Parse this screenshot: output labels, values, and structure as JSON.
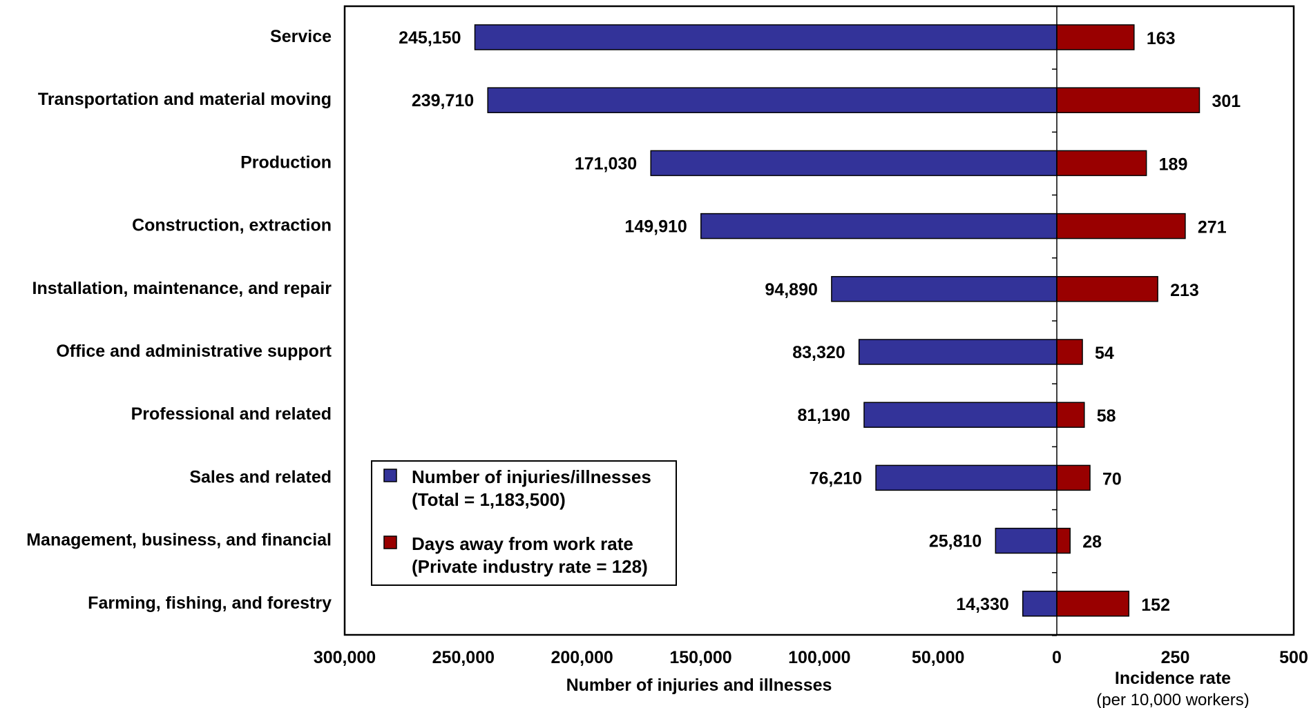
{
  "chart_data": {
    "type": "bar",
    "orientation": "horizontal",
    "categories": [
      "Service",
      "Transportation and material moving",
      "Production",
      "Construction, extraction",
      "Installation, maintenance, and repair",
      "Office and administrative support",
      "Professional and related",
      "Sales and related",
      "Management, business, and financial",
      "Farming, fishing, and forestry"
    ],
    "series": [
      {
        "name": "Number of injuries/illnesses (Total = 1,183,500)",
        "legend_lines": [
          "Number of injuries/illnesses",
          "(Total = 1,183,500)"
        ],
        "color": "#333399",
        "values": [
          245150,
          239710,
          171030,
          149910,
          94890,
          83320,
          81190,
          76210,
          25810,
          14330
        ],
        "labels": [
          "245,150",
          "239,710",
          "171,030",
          "149,910",
          "94,890",
          "83,320",
          "81,190",
          "76,210",
          "25,810",
          "14,330"
        ],
        "axis": "left",
        "xlim": [
          300000,
          0
        ]
      },
      {
        "name": "Days away from work rate (Private industry rate = 128)",
        "legend_lines": [
          "Days away from work rate",
          "(Private industry rate = 128)"
        ],
        "color": "#990000",
        "values": [
          163,
          301,
          189,
          271,
          213,
          54,
          58,
          70,
          28,
          152
        ],
        "labels": [
          "163",
          "301",
          "189",
          "271",
          "213",
          "54",
          "58",
          "70",
          "28",
          "152"
        ],
        "axis": "right",
        "xlim": [
          0,
          500
        ]
      }
    ],
    "left_axis": {
      "ticks": [
        "300,000",
        "250,000",
        "200,000",
        "150,000",
        "100,000",
        "50,000",
        "0"
      ],
      "tick_values": [
        300000,
        250000,
        200000,
        150000,
        100000,
        50000,
        0
      ],
      "title": "Number of injuries and illnesses"
    },
    "right_axis": {
      "ticks": [
        "250",
        "500"
      ],
      "tick_values": [
        250,
        500
      ],
      "title": "Incidence rate",
      "subtitle": "(per 10,000 workers)"
    },
    "legend_position": "lower-left inside plot",
    "grid": false
  }
}
